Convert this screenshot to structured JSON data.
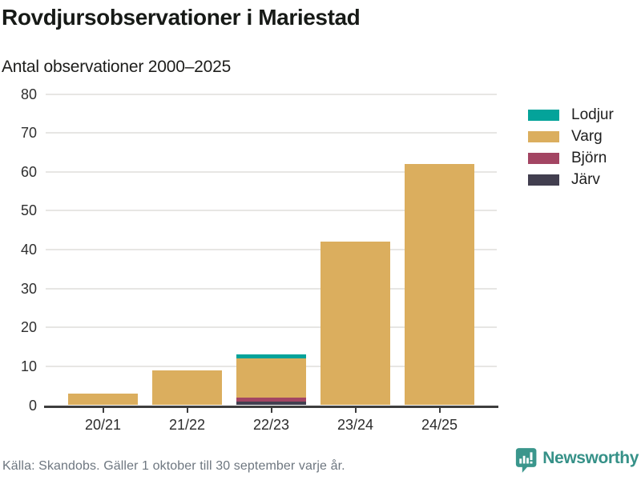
{
  "header": {
    "title": "Rovdjursobservationer i Mariestad",
    "subtitle": "Antal observationer 2000–2025"
  },
  "chart_data": {
    "type": "bar",
    "stacked": true,
    "title": "Rovdjursobservationer i Mariestad",
    "subtitle": "Antal observationer 2000–2025",
    "xlabel": "",
    "ylabel": "Antal observationer",
    "categories": [
      "20/21",
      "21/22",
      "22/23",
      "23/24",
      "24/25"
    ],
    "series": [
      {
        "name": "Lodjur",
        "color": "#04a39a",
        "values": [
          0,
          0,
          1,
          0,
          0
        ]
      },
      {
        "name": "Varg",
        "color": "#dbae5e",
        "values": [
          3,
          9,
          10,
          42,
          62
        ]
      },
      {
        "name": "Björn",
        "color": "#a34563",
        "values": [
          0,
          0,
          1,
          0,
          0
        ]
      },
      {
        "name": "Järv",
        "color": "#423f4f",
        "values": [
          0,
          0,
          1,
          0,
          0
        ]
      }
    ],
    "stack_order_bottom_to_top": [
      "Järv",
      "Björn",
      "Varg",
      "Lodjur"
    ],
    "totals": [
      3,
      9,
      13,
      42,
      62
    ],
    "ylim": [
      0,
      80
    ],
    "ytick_step": 10,
    "grid": true,
    "legend_position": "right"
  },
  "footer": {
    "source": "Källa: Skandobs. Gäller 1 oktober till 30 september varje år.",
    "brand": "Newsworthy",
    "brand_color": "#369188"
  },
  "colors": {
    "background": "#ffffff",
    "axis": "#3d3d3d",
    "gridline": "#e7e6e4",
    "tick_text": "#2f2f2f",
    "title_text": "#171a17",
    "source_text": "#6e7780"
  }
}
